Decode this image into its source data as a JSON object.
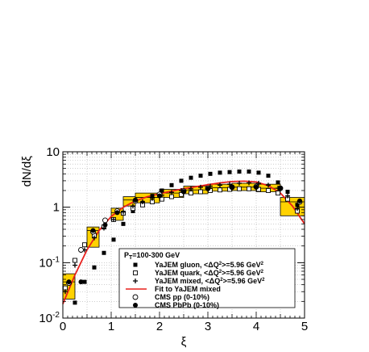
{
  "chart_data": {
    "type": "scatter",
    "title": "",
    "xlabel": "ξ",
    "ylabel": "dN/dξ",
    "xlim": [
      0,
      5
    ],
    "ylim": [
      0.01,
      10
    ],
    "yscale": "log",
    "grid": true,
    "legend_position": "bottom-center",
    "x_ticks": [
      "0",
      "1",
      "2",
      "3",
      "4",
      "5"
    ],
    "y_ticks": [
      {
        "base": "10",
        "exp": "-2",
        "value": 0.01
      },
      {
        "base": "10",
        "exp": "-1",
        "value": 0.1
      },
      {
        "base": "1",
        "exp": "",
        "value": 1
      },
      {
        "base": "10",
        "exp": "",
        "value": 10
      }
    ],
    "legend": {
      "header_main": "P",
      "header_sub": "T",
      "header_rest": "=100-300 GeV",
      "entries": [
        {
          "marker": "square-filled",
          "text": "YaJEM gluon, <ΔQ",
          "sup": "2",
          "text2": ">=5.96 GeV",
          "sup2": "2"
        },
        {
          "marker": "square-open",
          "text": "YaJEM quark, <ΔQ",
          "sup": "2",
          "text2": ">=5.96 GeV",
          "sup2": "2"
        },
        {
          "marker": "cross",
          "text": "YaJEM mixed, <ΔQ",
          "sup": "2",
          "text2": ">=5.96 GeV",
          "sup2": "2"
        },
        {
          "marker": "line",
          "text": "Fit to YaJEM mixed",
          "sup": "",
          "text2": "",
          "sup2": ""
        },
        {
          "marker": "circle-open",
          "text": "CMS pp (0-10%)",
          "sup": "",
          "text2": "",
          "sup2": ""
        },
        {
          "marker": "circle-filled",
          "text": "CMS PbPb (0-10%)",
          "sup": "",
          "text2": "",
          "sup2": ""
        }
      ]
    },
    "series": [
      {
        "name": "YaJEM gluon, <ΔQ2>=5.96 GeV2",
        "marker": "square-filled",
        "x": [
          0.25,
          0.45,
          0.65,
          0.85,
          1.05,
          1.25,
          1.45,
          1.65,
          1.85,
          2.05,
          2.25,
          2.45,
          2.65,
          2.85,
          3.05,
          3.25,
          3.45,
          3.65,
          3.85,
          4.05,
          4.25,
          4.45,
          4.65,
          4.85
        ],
        "y": [
          0.019,
          0.045,
          0.082,
          0.15,
          0.26,
          0.5,
          0.85,
          1.2,
          1.6,
          2.0,
          2.5,
          3.0,
          3.4,
          3.7,
          4.0,
          4.2,
          4.3,
          4.4,
          4.4,
          4.2,
          3.7,
          2.8,
          1.9,
          1.1
        ]
      },
      {
        "name": "YaJEM quark, <ΔQ2>=5.96 GeV2",
        "marker": "square-open",
        "x": [
          0.05,
          0.25,
          0.45,
          0.65,
          0.85,
          1.05,
          1.25,
          1.45,
          1.65,
          1.85,
          2.05,
          2.25,
          2.45,
          2.65,
          2.85,
          3.05,
          3.25,
          3.45,
          3.65,
          3.85,
          4.05,
          4.25,
          4.45,
          4.65,
          4.85
        ],
        "y": [
          0.035,
          0.11,
          0.21,
          0.31,
          0.44,
          0.6,
          0.78,
          0.95,
          1.1,
          1.25,
          1.4,
          1.55,
          1.7,
          1.8,
          1.9,
          2.0,
          2.05,
          2.1,
          2.15,
          2.15,
          2.1,
          2.0,
          1.8,
          1.4,
          0.85
        ]
      },
      {
        "name": "YaJEM mixed, <ΔQ2>=5.96 GeV2",
        "marker": "cross",
        "x": [
          0.05,
          0.25,
          0.45,
          0.65,
          0.85,
          1.05,
          1.25,
          1.45,
          1.65,
          1.85,
          2.05,
          2.25,
          2.45,
          2.65,
          2.85,
          3.05,
          3.25,
          3.45,
          3.65,
          3.85,
          4.05,
          4.25,
          4.45,
          4.65,
          4.85
        ],
        "y": [
          0.03,
          0.09,
          0.17,
          0.28,
          0.42,
          0.6,
          0.82,
          1.05,
          1.25,
          1.45,
          1.65,
          1.85,
          2.0,
          2.15,
          2.3,
          2.4,
          2.5,
          2.6,
          2.7,
          2.75,
          2.7,
          2.5,
          2.2,
          1.6,
          0.95
        ]
      },
      {
        "name": "CMS pp (0-10%)",
        "marker": "circle-open",
        "x": [
          0.125,
          0.375,
          0.625,
          0.875,
          1.125,
          1.5,
          2.0,
          2.5,
          3.0,
          3.5,
          4.0,
          4.5,
          4.9
        ],
        "y": [
          0.043,
          0.17,
          0.36,
          0.58,
          0.85,
          1.3,
          1.7,
          1.95,
          2.2,
          2.3,
          2.35,
          2.2,
          1.25
        ]
      },
      {
        "name": "CMS PbPb (0-10%)",
        "marker": "circle-filled",
        "x": [
          0.125,
          0.375,
          0.625,
          0.875,
          1.125,
          1.5,
          2.0,
          2.5,
          3.0,
          3.5,
          4.0,
          4.5,
          4.9
        ],
        "y": [
          0.045,
          0.045,
          0.38,
          0.48,
          0.8,
          1.35,
          1.6,
          1.9,
          2.15,
          2.3,
          2.3,
          2.2,
          1.3
        ]
      }
    ],
    "pbpb_boxes": [
      {
        "x0": 0.0,
        "x1": 0.25,
        "ylo": 0.022,
        "yhi": 0.063,
        "yc": 0.045
      },
      {
        "x0": 0.5,
        "x1": 0.75,
        "ylo": 0.19,
        "yhi": 0.44,
        "yc": 0.38
      },
      {
        "x0": 1.0,
        "x1": 1.25,
        "ylo": 0.58,
        "yhi": 0.96,
        "yc": 0.8
      },
      {
        "x0": 1.25,
        "x1": 1.5,
        "ylo": 1.05,
        "yhi": 1.55,
        "yc": 1.35
      },
      {
        "x0": 1.5,
        "x1": 2.0,
        "ylo": 1.2,
        "yhi": 1.8,
        "yc": 1.5
      },
      {
        "x0": 2.0,
        "x1": 2.5,
        "ylo": 1.5,
        "yhi": 2.1,
        "yc": 1.8
      },
      {
        "x0": 2.5,
        "x1": 3.0,
        "ylo": 1.75,
        "yhi": 2.4,
        "yc": 2.05
      },
      {
        "x0": 3.0,
        "x1": 3.5,
        "ylo": 1.95,
        "yhi": 2.6,
        "yc": 2.25
      },
      {
        "x0": 3.5,
        "x1": 4.0,
        "ylo": 2.0,
        "yhi": 2.7,
        "yc": 2.3
      },
      {
        "x0": 4.0,
        "x1": 4.5,
        "ylo": 1.9,
        "yhi": 2.6,
        "yc": 2.2
      },
      {
        "x0": 4.5,
        "x1": 5.0,
        "ylo": 0.7,
        "yhi": 1.5,
        "yc": 1.25
      }
    ],
    "fit_curve": {
      "name": "Fit to YaJEM mixed",
      "x": [
        0.0,
        0.25,
        0.5,
        0.75,
        1.0,
        1.25,
        1.5,
        1.75,
        2.0,
        2.25,
        2.5,
        2.75,
        3.0,
        3.25,
        3.5,
        3.75,
        4.0,
        4.25,
        4.5,
        4.75,
        5.0
      ],
      "y": [
        0.018,
        0.06,
        0.17,
        0.38,
        0.68,
        1.0,
        1.3,
        1.55,
        1.75,
        1.95,
        2.15,
        2.35,
        2.55,
        2.75,
        2.9,
        2.95,
        2.85,
        2.45,
        1.8,
        1.05,
        0.5
      ]
    },
    "colors": {
      "fit_line": "#e8201c",
      "box_fill": "#ffd200",
      "box_stroke": "#000000",
      "grid": "#b0b0b0",
      "marker": "#000000"
    }
  }
}
